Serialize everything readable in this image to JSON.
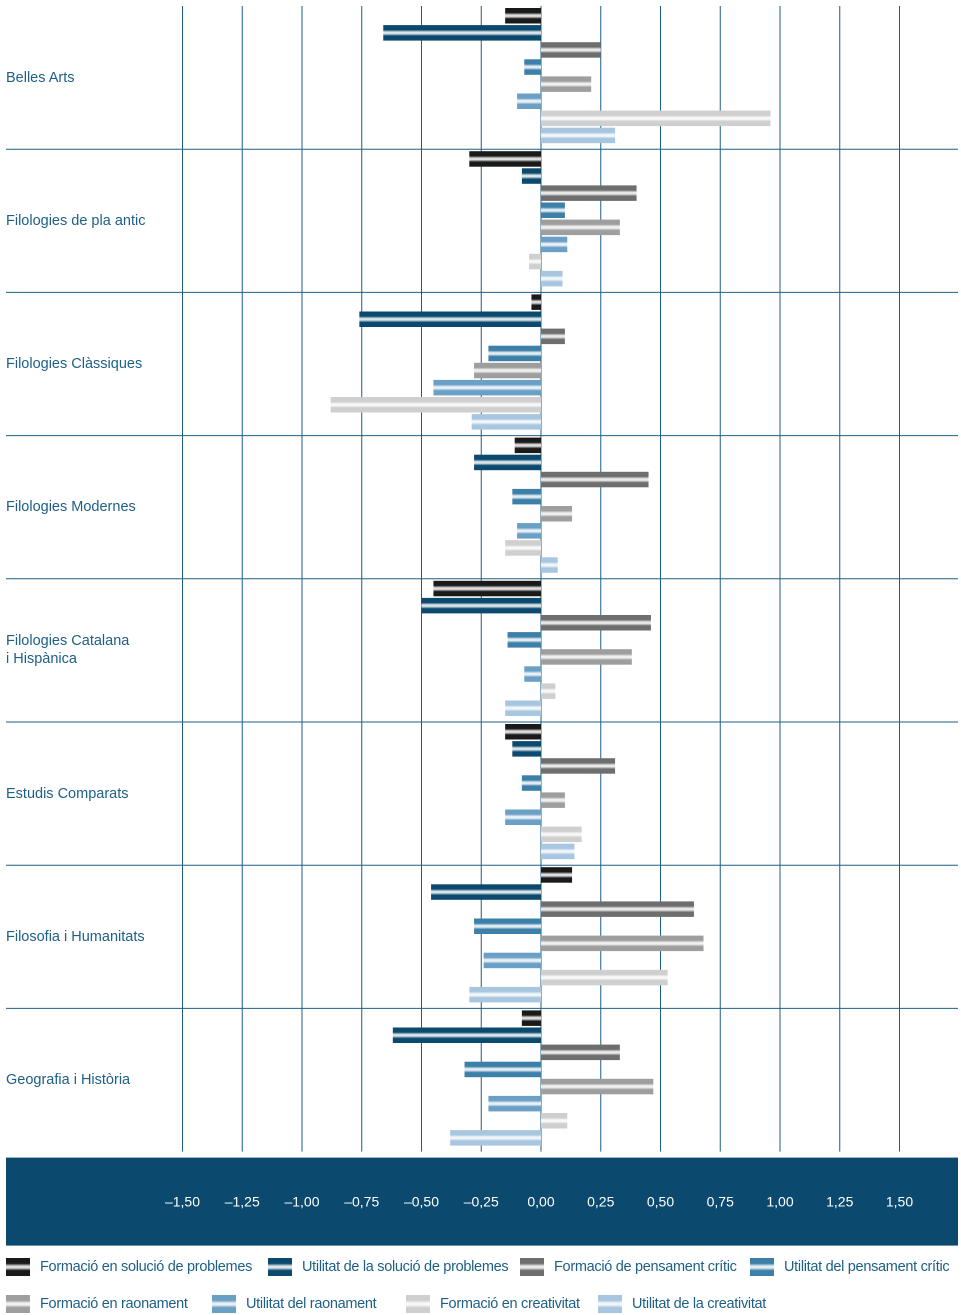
{
  "chart_data": {
    "type": "bar",
    "orientation": "horizontal",
    "categories": [
      "Belles Arts",
      "Filologies de pla antic",
      "Filologies Clàssiques",
      "Filologies Modernes",
      "Filologies Catalana\ni Hispànica",
      "Estudis Comparats",
      "Filosofia i Humanitats",
      "Geografia i Història"
    ],
    "series": [
      {
        "name": "Formació en solució de problemes",
        "color": "#1a1a1a",
        "values": [
          -0.15,
          -0.3,
          -0.04,
          -0.11,
          -0.45,
          -0.15,
          0.13,
          -0.08
        ]
      },
      {
        "name": "Utilitat de la solució de problemes",
        "color": "#0b4a6e",
        "values": [
          -0.66,
          -0.08,
          -0.76,
          -0.28,
          -0.5,
          -0.12,
          -0.46,
          -0.62
        ]
      },
      {
        "name": "Formació de pensament crític",
        "color": "#6e6e6e",
        "values": [
          0.25,
          0.4,
          0.1,
          0.45,
          0.46,
          0.31,
          0.64,
          0.33
        ]
      },
      {
        "name": "Utilitat del pensament crític",
        "color": "#3c7fa8",
        "values": [
          -0.07,
          0.1,
          -0.22,
          -0.12,
          -0.14,
          -0.08,
          -0.28,
          -0.32
        ]
      },
      {
        "name": "Formació en raonament",
        "color": "#9e9e9e",
        "values": [
          0.21,
          0.33,
          -0.28,
          0.13,
          0.38,
          0.1,
          0.68,
          0.47
        ]
      },
      {
        "name": "Utilitat del raonament",
        "color": "#6a9fc6",
        "values": [
          -0.1,
          0.11,
          -0.45,
          -0.1,
          -0.07,
          -0.15,
          -0.24,
          -0.22
        ]
      },
      {
        "name": "Formació en creativitat",
        "color": "#cfcfcf",
        "values": [
          0.96,
          -0.05,
          -0.88,
          -0.15,
          0.06,
          0.17,
          0.53,
          0.11
        ]
      },
      {
        "name": "Utilitat de la creativitat",
        "color": "#a8c6df",
        "values": [
          0.31,
          0.09,
          -0.29,
          0.07,
          -0.15,
          0.14,
          -0.3,
          -0.38
        ]
      }
    ],
    "xlim": [
      -1.5,
      1.5
    ],
    "ticks": [
      -1.5,
      -1.25,
      -1.0,
      -0.75,
      -0.5,
      -0.25,
      0.0,
      0.25,
      0.5,
      0.75,
      1.0,
      1.25,
      1.5
    ],
    "tick_labels": [
      "–1,50",
      "–1,25",
      "–1,00",
      "–0,75",
      "–0,50",
      "–0,25",
      "0,00",
      "0,25",
      "0,50",
      "0,75",
      "1,00",
      "1,25",
      "1,50"
    ],
    "grid": true,
    "legend_position": "bottom",
    "axis_band_color": "#0b4a6e"
  }
}
